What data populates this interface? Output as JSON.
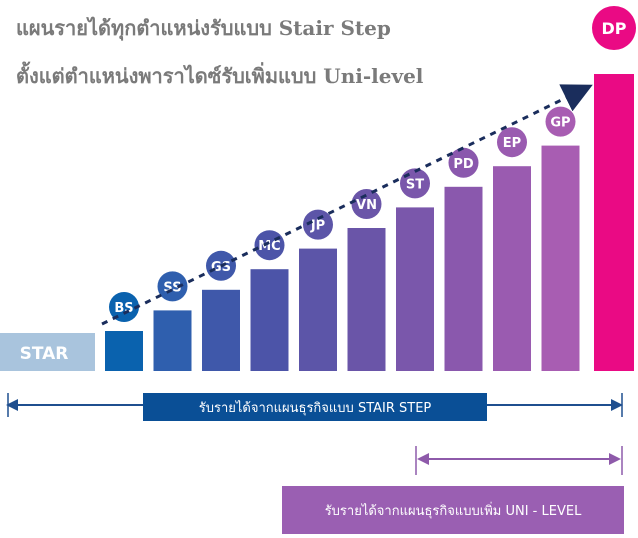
{
  "title": {
    "line1": "แผนรายได้ทุกตำแหน่งรับแบบ Stair Step",
    "line2": "ตั้งแต่ตำแหน่งพาราไดซ์รับเพิ่มแบบ Uni-level"
  },
  "start_label": "STAR",
  "steps": [
    {
      "label": "BS",
      "level": 1
    },
    {
      "label": "SS",
      "level": 2
    },
    {
      "label": "GS",
      "level": 3
    },
    {
      "label": "MC",
      "level": 4
    },
    {
      "label": "JP",
      "level": 5
    },
    {
      "label": "VN",
      "level": 6
    },
    {
      "label": "ST",
      "level": 7
    },
    {
      "label": "PD",
      "level": 8
    },
    {
      "label": "EP",
      "level": 9
    },
    {
      "label": "GP",
      "level": 10
    },
    {
      "label": "DP",
      "level": 11
    }
  ],
  "banners": {
    "stair_step": "รับรายได้จากแผนธุรกิจแบบ STAIR STEP",
    "uni_level": "รับรายได้จากแผนธุรกิจแบบเพิ่ม UNI - LEVEL"
  },
  "colors": {
    "title": "#7a7a7a",
    "star_box": "#a9c4dd",
    "stair_banner": "#0a4f96",
    "uni_banner": "#9a5fb2",
    "arrow_blue": "#1f4f8f",
    "arrow_purple": "#8e5aaa",
    "dashed_arrow": "#1a2d5c",
    "dp": "#ea0a84",
    "step_palette": [
      "#0a62ae",
      "#2f5fae",
      "#3f58aa",
      "#4c54a8",
      "#5c55a8",
      "#6a55a8",
      "#7a57ab",
      "#8a58ad",
      "#9a5bb0",
      "#a85db2",
      "#ea0a84"
    ]
  }
}
